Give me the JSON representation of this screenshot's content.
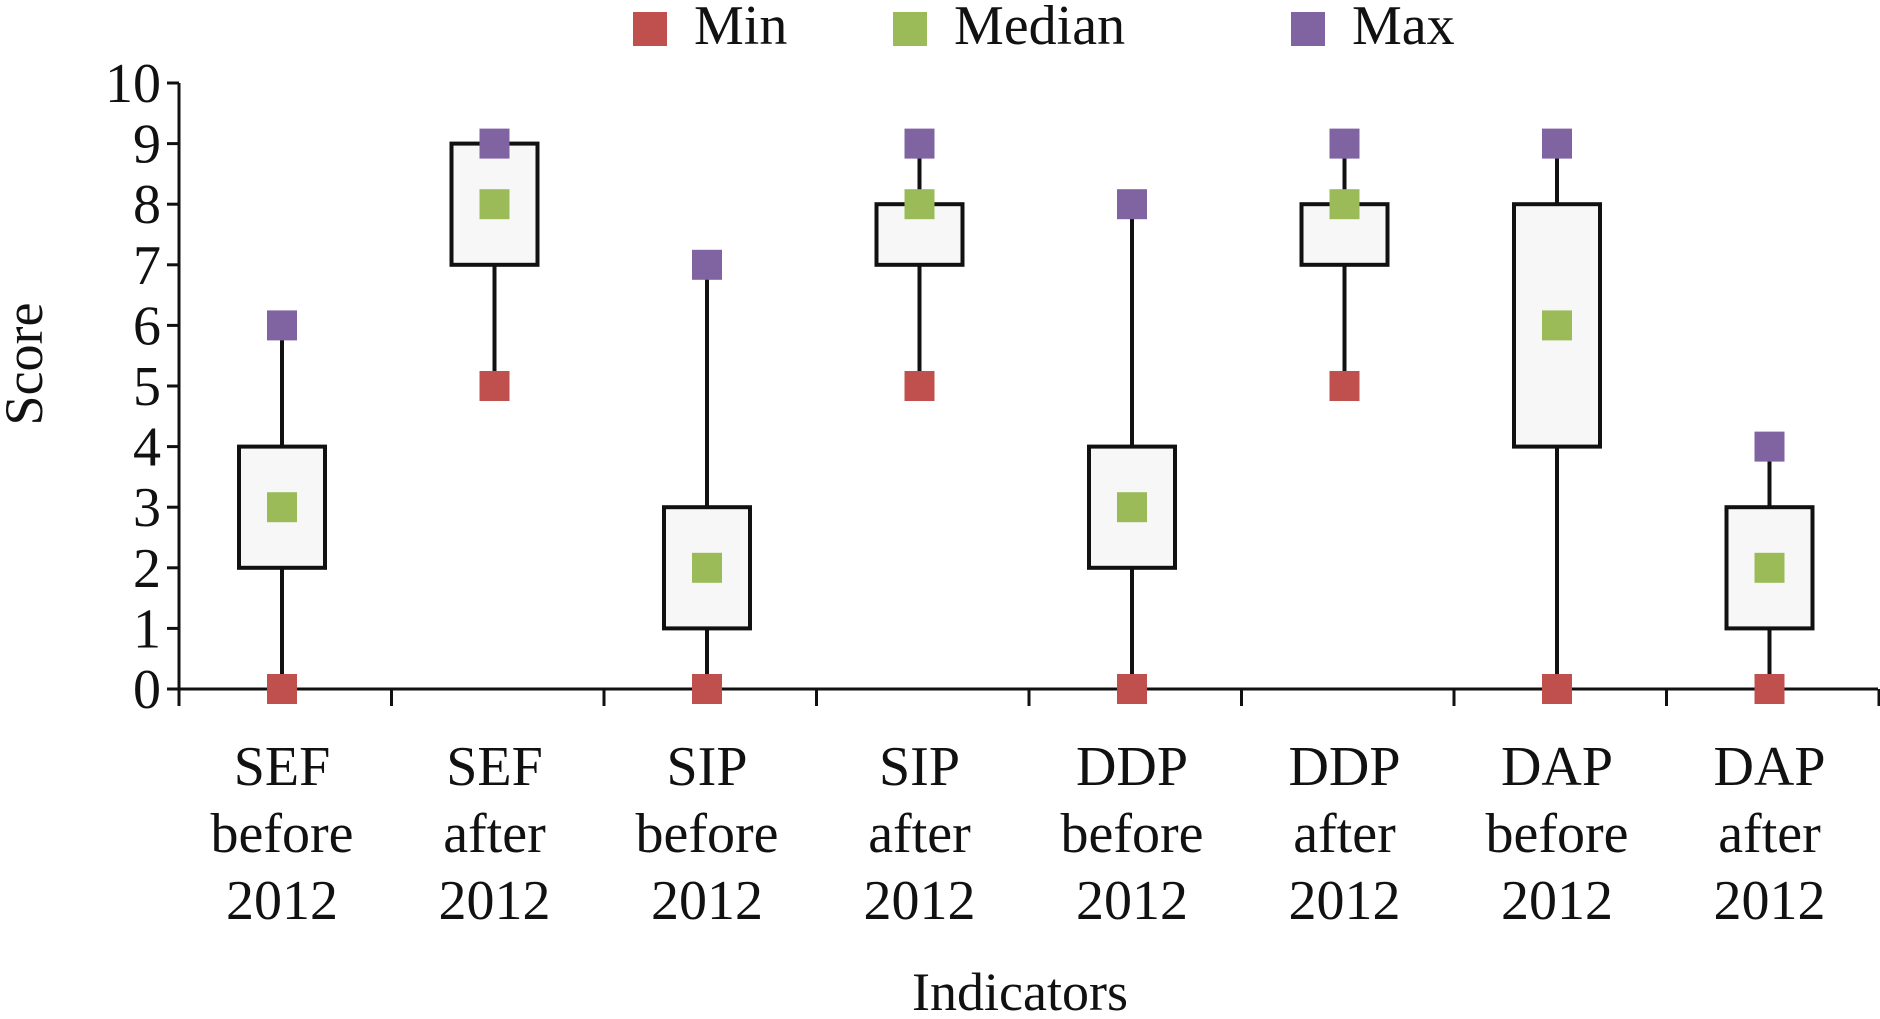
{
  "chart_data": {
    "type": "box",
    "title": "",
    "xlabel": "Indicators",
    "ylabel": "Score",
    "ylim": [
      0,
      10
    ],
    "yticks": [
      0,
      1,
      2,
      3,
      4,
      5,
      6,
      7,
      8,
      9,
      10
    ],
    "grid": false,
    "legend_position": "top",
    "categories": [
      [
        "SEF",
        "before",
        "2012"
      ],
      [
        "SEF",
        "after",
        "2012"
      ],
      [
        "SIP",
        "before",
        "2012"
      ],
      [
        "SIP",
        "after",
        "2012"
      ],
      [
        "DDP",
        "before",
        "2012"
      ],
      [
        "DDP",
        "after",
        "2012"
      ],
      [
        "DAP",
        "before",
        "2012"
      ],
      [
        "DAP",
        "after",
        "2012"
      ]
    ],
    "q1": [
      2,
      7,
      1,
      7,
      2,
      7,
      4,
      1
    ],
    "q3": [
      4,
      9,
      3,
      8,
      4,
      8,
      8,
      3
    ],
    "series": [
      {
        "name": "Min",
        "color": "#c0504d",
        "values": [
          0,
          5,
          0,
          5,
          0,
          5,
          0,
          0
        ]
      },
      {
        "name": "Median",
        "color": "#9bbb59",
        "values": [
          3,
          8,
          2,
          8,
          3,
          8,
          6,
          2
        ]
      },
      {
        "name": "Max",
        "color": "#8064a2",
        "values": [
          6,
          9,
          7,
          9,
          8,
          9,
          9,
          4
        ]
      }
    ],
    "box_fill": "#f7f7f7",
    "line_color": "#111111"
  }
}
